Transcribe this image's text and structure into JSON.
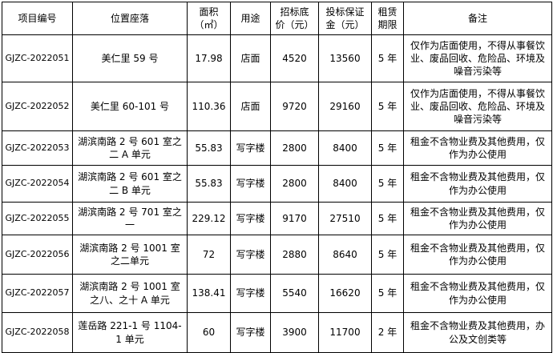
{
  "table": {
    "headers": [
      "项目编号",
      "位置座落",
      "面积\n（㎡）",
      "招标底\n价（元）",
      "投标保证\n金（元）",
      "租赁\n期限",
      "备注",
      "用途"
    ],
    "rows": [
      {
        "project_id": "GJZC-2022051",
        "location": "美仁里 59 号",
        "area": "17.98",
        "usage": "店面",
        "floor_price": "4520",
        "deposit": "13560",
        "lease_term": "5 年",
        "remark": "仅作为店面使用，不得从事餐饮业、废品回收、危险品、环境及噪音污染等"
      },
      {
        "project_id": "GJZC-2022052",
        "location": "美仁里 60-101 号",
        "area": "110.36",
        "usage": "店面",
        "floor_price": "9720",
        "deposit": "29160",
        "lease_term": "5 年",
        "remark": "仅作为店面使用，不得从事餐饮业、废品回收、危险品、环境及噪音污染等"
      },
      {
        "project_id": "GJZC-2022053",
        "location": "湖滨南路 2 号 601 室之二 A 单元",
        "area": "55.83",
        "usage": "写字楼",
        "floor_price": "2800",
        "deposit": "8400",
        "lease_term": "5 年",
        "remark": "租金不含物业费及其他费用，仅作为办公使用"
      },
      {
        "project_id": "GJZC-2022054",
        "location": "湖滨南路 2 号 601 室之二 B 单元",
        "area": "55.83",
        "usage": "写字楼",
        "floor_price": "2800",
        "deposit": "8400",
        "lease_term": "5 年",
        "remark": "租金不含物业费及其他费用，仅作为办公使用"
      },
      {
        "project_id": "GJZC-2022055",
        "location": "湖滨南路 2 号 701 室之一",
        "area": "229.12",
        "usage": "写字楼",
        "floor_price": "9170",
        "deposit": "27510",
        "lease_term": "5 年",
        "remark": "租金不含物业费及其他费用，仅作为办公使用"
      },
      {
        "project_id": "GJZC-2022056",
        "location": "湖滨南路 2 号 1001 室之二单元",
        "area": "72",
        "usage": "写字楼",
        "floor_price": "2880",
        "deposit": "8640",
        "lease_term": "5 年",
        "remark": "租金不含物业费及其他费用，仅作为办公使用"
      },
      {
        "project_id": "GJZC-2022057",
        "location": "湖滨南路 2 号 1001 室之八、之十 A 单元",
        "area": "138.41",
        "usage": "写字楼",
        "floor_price": "5540",
        "deposit": "16620",
        "lease_term": "5 年",
        "remark": "租金不含物业费及其他费用，仅作为办公使用"
      },
      {
        "project_id": "GJZC-2022058",
        "location": "莲岳路 221-1 号 1104-1 单元",
        "area": "60",
        "usage": "写字楼",
        "floor_price": "3900",
        "deposit": "11700",
        "lease_term": "2 年",
        "remark": "租金不含物业费及其他费用，办公及文创类等"
      }
    ],
    "colors": {
      "border": "#000000",
      "text": "#000000",
      "background": "#ffffff"
    }
  }
}
